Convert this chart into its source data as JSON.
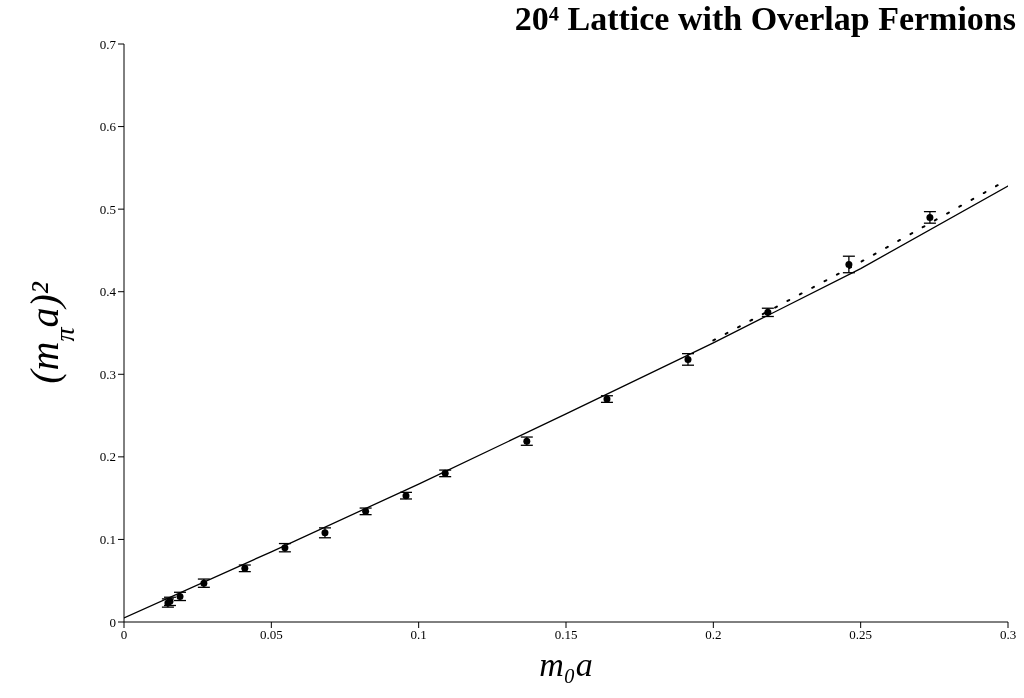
{
  "chart_data": {
    "type": "scatter",
    "title": "20⁴ Lattice with Overlap Fermions",
    "xlabel": "m₀a",
    "ylabel": "(m$_{π}$a)²",
    "xlim": [
      0,
      0.3
    ],
    "xticks": [
      0,
      0.05,
      0.1,
      0.15,
      0.2,
      0.25,
      0.3
    ],
    "ylim": [
      0,
      0.7
    ],
    "yticks": [
      0,
      0.1,
      0.2,
      0.3,
      0.4,
      0.5,
      0.6,
      0.7
    ],
    "grid": false,
    "series": [
      {
        "color": "#000000",
        "marker": "circle",
        "x": [
          0.0149,
          0.0156,
          0.019,
          0.0271,
          0.041,
          0.0546,
          0.0682,
          0.082,
          0.0957,
          0.109,
          0.1367,
          0.1639,
          0.1914,
          0.2185,
          0.246,
          0.2735
        ],
        "values": [
          0.023,
          0.025,
          0.031,
          0.047,
          0.065,
          0.09,
          0.108,
          0.134,
          0.153,
          0.18,
          0.219,
          0.27,
          0.318,
          0.375,
          0.433,
          0.49
        ],
        "errors": [
          0.005,
          0.005,
          0.005,
          0.005,
          0.004,
          0.005,
          0.006,
          0.004,
          0.004,
          0.004,
          0.005,
          0.004,
          0.007,
          0.005,
          0.01,
          0.007
        ]
      },
      {
        "type": "line",
        "color": "#000000",
        "marker": "none",
        "line_style": "solid",
        "x": [
          0,
          0.05,
          0.1,
          0.15,
          0.2,
          0.25,
          0.3
        ],
        "values": [
          0.005,
          0.085,
          0.167,
          0.252,
          0.338,
          0.428,
          0.528
        ]
      },
      {
        "type": "line",
        "color": "#000000",
        "marker": "none",
        "line_style": "dotted",
        "x": [
          0.2,
          0.25,
          0.3
        ],
        "values": [
          0.341,
          0.436,
          0.536
        ]
      }
    ]
  }
}
